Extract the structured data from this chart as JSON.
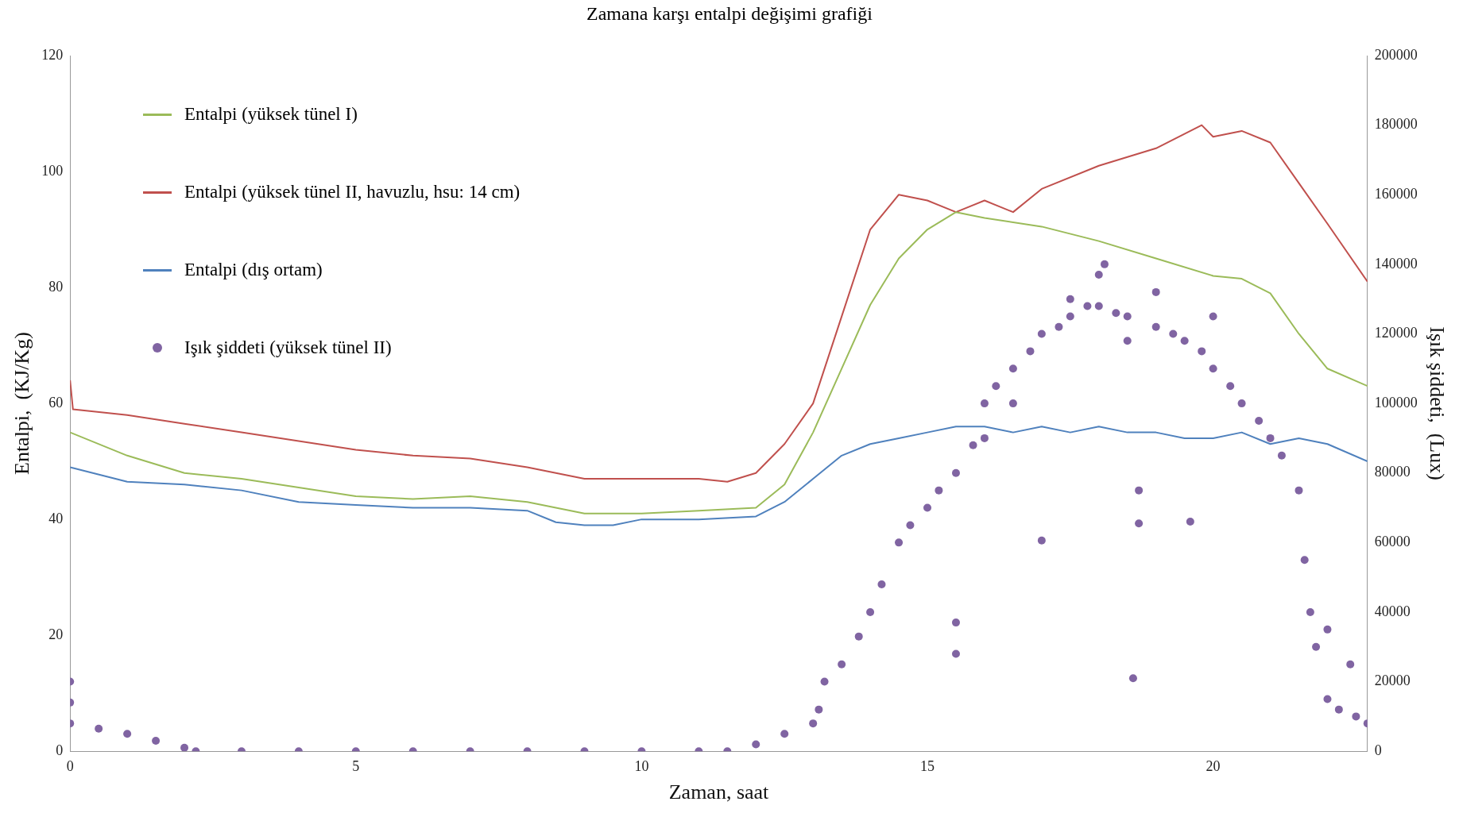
{
  "chart_data": {
    "type": "line",
    "title": "Zamana karşı entalpi değişimi  grafiği",
    "xlabel": "Zaman, saat",
    "ylabel": "Entalpi,  (KJ/Kg)",
    "y2label": "Işık şiddeti,  (Lux)",
    "xlim": [
      0,
      22.7
    ],
    "xticks": [
      0,
      5,
      10,
      15,
      20
    ],
    "ylim": [
      0,
      120
    ],
    "yticks": [
      0,
      20,
      40,
      60,
      80,
      100,
      120
    ],
    "y2lim": [
      0,
      200000
    ],
    "y2ticks": [
      0,
      20000,
      40000,
      60000,
      80000,
      100000,
      120000,
      140000,
      160000,
      180000,
      200000
    ],
    "grid": false,
    "legend": "top left",
    "marker": "none",
    "line_style": "solid",
    "series": [
      {
        "name": "Entalpi (yüksek tünel I)",
        "color": "#9bbb59",
        "type": "line",
        "x": [
          0,
          1,
          2,
          3,
          4,
          5,
          6,
          7,
          8,
          9,
          10,
          11,
          12,
          12.5,
          13,
          13.5,
          14,
          14.5,
          15,
          15.5,
          16,
          17,
          18,
          19,
          20,
          20.5,
          21,
          21.5,
          22,
          22.7
        ],
        "values": [
          55,
          51,
          48,
          47,
          45.5,
          44,
          43.5,
          44,
          43,
          41,
          41,
          41.5,
          42,
          46,
          55,
          66,
          77,
          85,
          90,
          93,
          92,
          90.5,
          88,
          85,
          82,
          81.5,
          79,
          72,
          66,
          63
        ]
      },
      {
        "name": "Entalpi (yüksek tünel II, havuzlu, hsu: 14 cm)",
        "color": "#c0504d",
        "type": "line",
        "x": [
          0,
          0.05,
          1,
          2,
          3,
          4,
          5,
          6,
          7,
          8,
          9,
          10,
          11,
          11.5,
          12,
          12.5,
          13,
          13.5,
          14,
          14.5,
          15,
          15.5,
          16,
          16.5,
          17,
          18,
          19,
          19.8,
          20,
          20.5,
          21,
          21.5,
          22,
          22.7
        ],
        "values": [
          64,
          59,
          58,
          56.5,
          55,
          53.5,
          52,
          51,
          50.5,
          49,
          47,
          47,
          47,
          46.5,
          48,
          53,
          60,
          75,
          90,
          96,
          95,
          93,
          95,
          93,
          97,
          101,
          104,
          108,
          106,
          107,
          105,
          98,
          91,
          81
        ]
      },
      {
        "name": "Entalpi (dış ortam)",
        "color": "#4f81bd",
        "type": "line",
        "x": [
          0,
          1,
          2,
          3,
          4,
          5,
          6,
          7,
          8,
          8.5,
          9,
          9.5,
          10,
          11,
          12,
          12.5,
          13,
          13.5,
          14,
          14.5,
          15,
          15.5,
          16,
          16.5,
          17,
          17.5,
          18,
          18.5,
          19,
          19.5,
          20,
          20.5,
          21,
          21.5,
          22,
          22.7
        ],
        "values": [
          49,
          46.5,
          46,
          45,
          43,
          42.5,
          42,
          42,
          41.5,
          39.5,
          39,
          39,
          40,
          40,
          40.5,
          43,
          47,
          51,
          53,
          54,
          55,
          56,
          56,
          55,
          56,
          55,
          56,
          55,
          55,
          54,
          54,
          55,
          53,
          54,
          53,
          50
        ]
      },
      {
        "name": "Işık şiddeti (yüksek tünel II)",
        "color": "#8064a2",
        "type": "scatter",
        "axis": "y2",
        "marker": "circle",
        "x": [
          0,
          0,
          0,
          0.5,
          1,
          1.5,
          2,
          2.2,
          3,
          4,
          5,
          6,
          7,
          8,
          9,
          10,
          11,
          11.5,
          12,
          12.5,
          13,
          13.1,
          13.2,
          13.5,
          13.8,
          14,
          14.2,
          14.5,
          14.7,
          15,
          15.2,
          15.5,
          15.5,
          15.5,
          15.8,
          16,
          16,
          16.2,
          16.5,
          16.5,
          16.8,
          17,
          17,
          17.3,
          17.5,
          17.5,
          17.8,
          18,
          18,
          18.1,
          18.3,
          18.5,
          18.5,
          18.6,
          18.7,
          18.7,
          19,
          19,
          19.3,
          19.5,
          19.6,
          19.8,
          20,
          20,
          20.3,
          20.5,
          20.8,
          21,
          21.2,
          21.5,
          21.6,
          21.7,
          21.8,
          22,
          22,
          22.2,
          22.4,
          22.5,
          22.7
        ],
        "values": [
          20000,
          14000,
          8000,
          6500,
          5000,
          3000,
          1000,
          0,
          0,
          0,
          0,
          0,
          0,
          0,
          0,
          0,
          0,
          0,
          2000,
          5000,
          8000,
          12000,
          20000,
          25000,
          33000,
          40000,
          48000,
          60000,
          65000,
          70000,
          75000,
          80000,
          37000,
          28000,
          88000,
          100000,
          90000,
          105000,
          110000,
          100000,
          115000,
          120000,
          60600,
          122000,
          125000,
          130000,
          128000,
          128000,
          137000,
          140000,
          126000,
          125000,
          118000,
          21000,
          75000,
          65500,
          122000,
          132000,
          120000,
          118000,
          66000,
          115000,
          110000,
          125000,
          105000,
          100000,
          95000,
          90000,
          85000,
          75000,
          55000,
          40000,
          30000,
          15000,
          35000,
          12000,
          25000,
          10000,
          8000
        ]
      }
    ]
  }
}
